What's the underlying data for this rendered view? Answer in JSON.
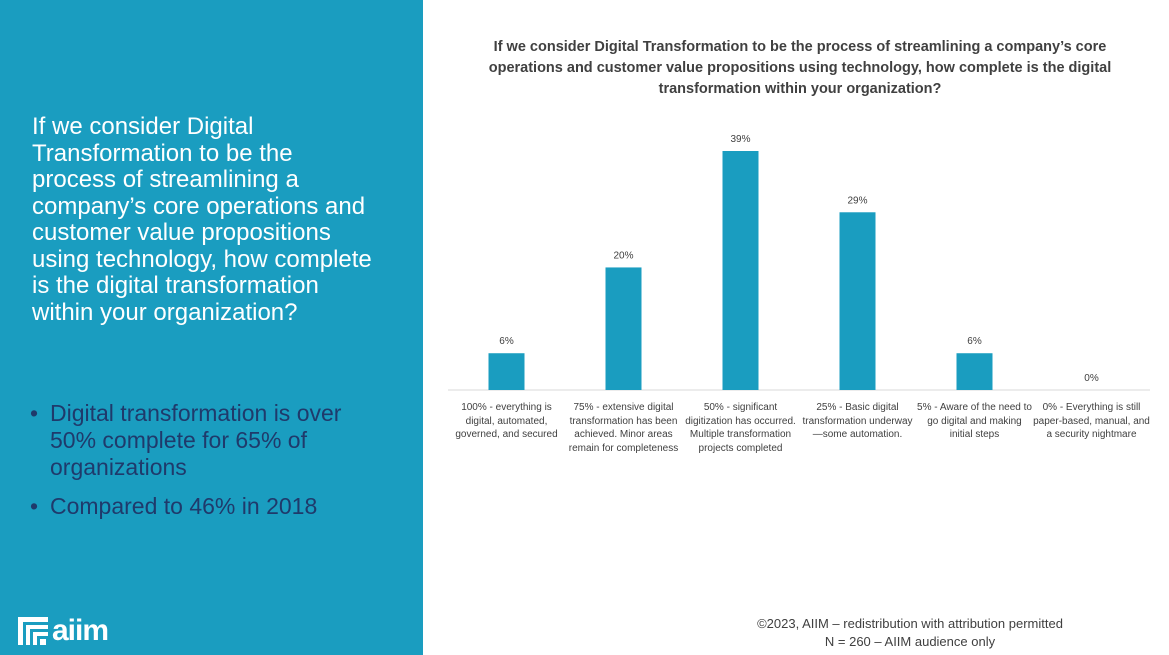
{
  "left_panel": {
    "question": "If we consider Digital Transformation to be the process of streamlining a company’s core operations and customer value propositions using technology, how complete is the digital transformation within your organization?",
    "bullets": [
      "Digital transformation is over 50% complete for 65% of organizations",
      "Compared to 46% in 2018"
    ],
    "logo_text": "aiim",
    "background_color": "#1a9dc0"
  },
  "chart_data": {
    "type": "bar",
    "title": "If we consider Digital Transformation to be the process of streamlining a company’s core operations and customer value propositions using technology, how complete is the digital transformation within your organization?",
    "categories": [
      "100% - everything is digital, automated, governed, and secured",
      "75% - extensive digital transformation has been achieved. Minor areas remain for completeness",
      "50% - significant digitization has occurred. Multiple transformation projects completed",
      "25% - Basic digital transformation underway—some automation.",
      "5% - Aware of the need to go digital and making initial steps",
      "0% - Everything is still paper-based, manual, and a security nightmare"
    ],
    "values": [
      6,
      20,
      39,
      29,
      6,
      0
    ],
    "data_labels": [
      "6%",
      "20%",
      "39%",
      "29%",
      "6%",
      "0%"
    ],
    "bar_color": "#1a9dc0",
    "grid": false
  },
  "footer": {
    "line1": "©2023, AIIM – redistribution with attribution permitted",
    "line2": "N = 260 – AIIM audience only"
  }
}
